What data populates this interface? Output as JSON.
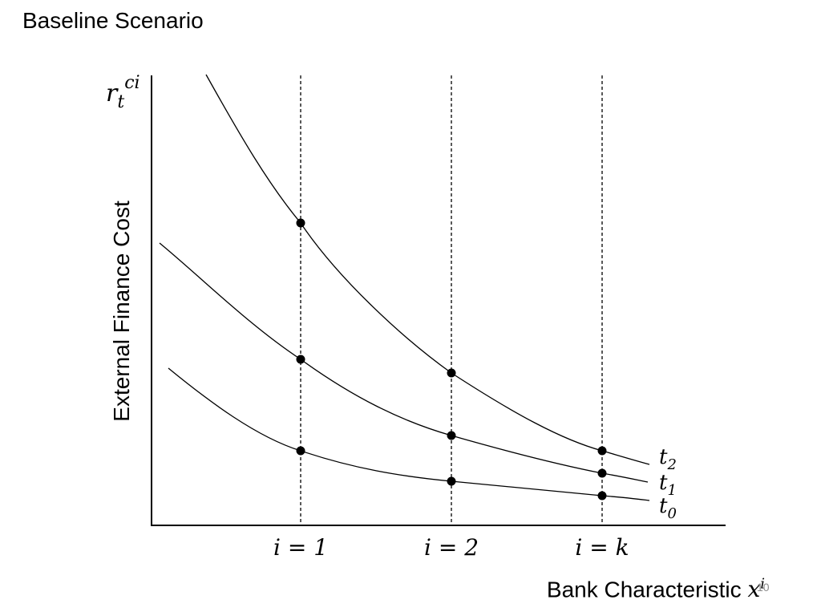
{
  "title": "Baseline Scenario",
  "page_number": "10",
  "y_axis": {
    "label": "External Finance Cost",
    "var_base": "r",
    "var_sub": "t",
    "var_sup": "ci"
  },
  "x_axis": {
    "label_text": "Bank Characteristic",
    "var_base": "x",
    "var_sup": "i"
  },
  "markers": [
    "i = 1",
    "i = 2",
    "i = k"
  ],
  "curves": [
    {
      "name_base": "t",
      "name_sub": "2"
    },
    {
      "name_base": "t",
      "name_sub": "1"
    },
    {
      "name_base": "t",
      "name_sub": "0"
    }
  ],
  "colors": {
    "line": "#000000",
    "page_number": "#8a8a8a"
  }
}
